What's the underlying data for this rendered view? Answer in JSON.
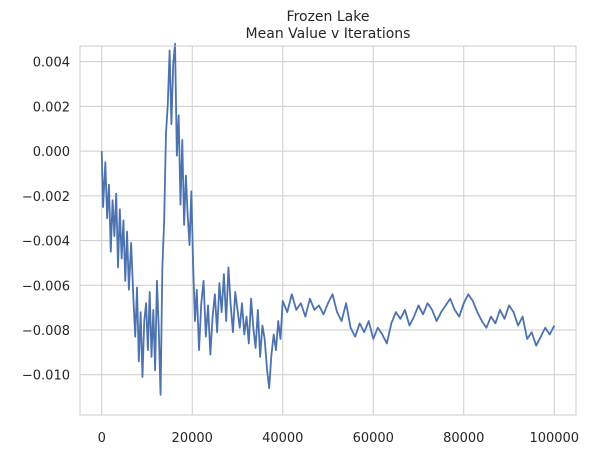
{
  "chart_data": {
    "type": "line",
    "title": "Frozen Lake",
    "subtitle": "Mean Value v Iterations",
    "xlabel": "",
    "ylabel": "",
    "xlim": [
      -4800,
      104800
    ],
    "ylim": [
      -0.0118,
      0.0047
    ],
    "grid": true,
    "legend": "none",
    "x_ticks": [
      0,
      20000,
      40000,
      60000,
      80000,
      100000
    ],
    "x_tick_labels": [
      "0",
      "20000",
      "40000",
      "60000",
      "80000",
      "100000"
    ],
    "y_ticks": [
      0.004,
      0.002,
      0.0,
      -0.002,
      -0.004,
      -0.006,
      -0.008,
      -0.01
    ],
    "y_tick_labels": [
      "0.004",
      "0.002",
      "0.000",
      "−0.002",
      "−0.004",
      "−0.006",
      "−0.008",
      "−0.010"
    ],
    "series": [
      {
        "name": "",
        "color": "#4c72b0",
        "x": [
          0,
          300,
          800,
          1200,
          1600,
          2000,
          2400,
          2800,
          3200,
          3600,
          4000,
          4400,
          4800,
          5200,
          5600,
          6000,
          6500,
          7000,
          7400,
          7800,
          8200,
          8600,
          9000,
          9400,
          9800,
          10200,
          10600,
          11000,
          11400,
          11800,
          12200,
          12600,
          13000,
          13400,
          13800,
          14200,
          14600,
          15000,
          15400,
          15800,
          16200,
          16600,
          17000,
          17400,
          17800,
          18200,
          18600,
          19000,
          19400,
          19800,
          20200,
          20600,
          21000,
          21500,
          22000,
          22500,
          23000,
          23500,
          24000,
          24500,
          25000,
          25500,
          26000,
          26500,
          27000,
          27500,
          28000,
          28500,
          29000,
          29500,
          30000,
          30500,
          31000,
          31500,
          32000,
          32500,
          33000,
          33500,
          34000,
          34500,
          35000,
          35500,
          36000,
          36500,
          37000,
          37500,
          38000,
          38500,
          39000,
          39500,
          40000,
          41000,
          42000,
          43000,
          44000,
          45000,
          46000,
          47000,
          48000,
          49000,
          50000,
          51000,
          52000,
          53000,
          54000,
          55000,
          56000,
          57000,
          58000,
          59000,
          60000,
          61000,
          62000,
          63000,
          64000,
          65000,
          66000,
          67000,
          68000,
          69000,
          70000,
          71000,
          72000,
          73000,
          74000,
          75000,
          76000,
          77000,
          78000,
          79000,
          80000,
          81000,
          82000,
          83000,
          84000,
          85000,
          86000,
          87000,
          88000,
          89000,
          90000,
          91000,
          92000,
          93000,
          94000,
          95000,
          96000,
          97000,
          98000,
          99000,
          100000
        ],
        "y": [
          0.0,
          -0.0025,
          -0.0005,
          -0.003,
          -0.0015,
          -0.0045,
          -0.0022,
          -0.0038,
          -0.0019,
          -0.0052,
          -0.0026,
          -0.0048,
          -0.0031,
          -0.0058,
          -0.0036,
          -0.0062,
          -0.0041,
          -0.0066,
          -0.0083,
          -0.0061,
          -0.0094,
          -0.0072,
          -0.0101,
          -0.0076,
          -0.0068,
          -0.0089,
          -0.0063,
          -0.0092,
          -0.0071,
          -0.0098,
          -0.0058,
          -0.0079,
          -0.0109,
          -0.0052,
          -0.0031,
          0.0008,
          0.0021,
          0.0045,
          0.0012,
          0.0039,
          0.0048,
          -0.0002,
          0.0016,
          -0.0024,
          0.0005,
          -0.0033,
          -0.0011,
          -0.0029,
          -0.0042,
          -0.0018,
          -0.0051,
          -0.0076,
          -0.0062,
          -0.0089,
          -0.0068,
          -0.0058,
          -0.0083,
          -0.0069,
          -0.0091,
          -0.0074,
          -0.0064,
          -0.0081,
          -0.0059,
          -0.0072,
          -0.0055,
          -0.0076,
          -0.0052,
          -0.0069,
          -0.0081,
          -0.0063,
          -0.0071,
          -0.0079,
          -0.0068,
          -0.0082,
          -0.0074,
          -0.0086,
          -0.0066,
          -0.0079,
          -0.0088,
          -0.0071,
          -0.0092,
          -0.0078,
          -0.0084,
          -0.0097,
          -0.0106,
          -0.0091,
          -0.0082,
          -0.0089,
          -0.0076,
          -0.0084,
          -0.0067,
          -0.0072,
          -0.0064,
          -0.0071,
          -0.0068,
          -0.0074,
          -0.0066,
          -0.0071,
          -0.0069,
          -0.0073,
          -0.0068,
          -0.0064,
          -0.0072,
          -0.0076,
          -0.0068,
          -0.0079,
          -0.0083,
          -0.0077,
          -0.0081,
          -0.0076,
          -0.0084,
          -0.0079,
          -0.0082,
          -0.0086,
          -0.0077,
          -0.0072,
          -0.0075,
          -0.0071,
          -0.0078,
          -0.0074,
          -0.0069,
          -0.0073,
          -0.0068,
          -0.0071,
          -0.0076,
          -0.0072,
          -0.0069,
          -0.0066,
          -0.0071,
          -0.0074,
          -0.0068,
          -0.0064,
          -0.0067,
          -0.0072,
          -0.0076,
          -0.0079,
          -0.0074,
          -0.0077,
          -0.0071,
          -0.0075,
          -0.0069,
          -0.0072,
          -0.0078,
          -0.0074,
          -0.0084,
          -0.0081,
          -0.0087,
          -0.0083,
          -0.0079,
          -0.0082,
          -0.0078
        ]
      }
    ]
  }
}
